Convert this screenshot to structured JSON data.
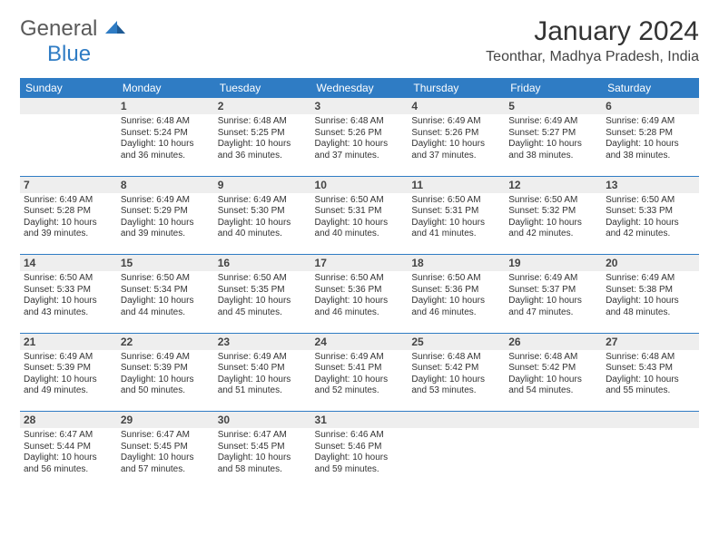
{
  "brand": {
    "part1": "General",
    "part2": "Blue"
  },
  "header": {
    "month_title": "January 2024",
    "location": "Teonthar, Madhya Pradesh, India"
  },
  "colors": {
    "accent": "#2f7cc4",
    "header_text": "#ffffff",
    "daynum_bg": "#eeeeee",
    "body_text": "#333333",
    "page_bg": "#ffffff",
    "logo_gray": "#5a5a5a"
  },
  "day_headers": [
    "Sunday",
    "Monday",
    "Tuesday",
    "Wednesday",
    "Thursday",
    "Friday",
    "Saturday"
  ],
  "weeks": [
    [
      {
        "day": "",
        "sunrise": "",
        "sunset": "",
        "daylight": ""
      },
      {
        "day": "1",
        "sunrise": "Sunrise: 6:48 AM",
        "sunset": "Sunset: 5:24 PM",
        "daylight": "Daylight: 10 hours and 36 minutes."
      },
      {
        "day": "2",
        "sunrise": "Sunrise: 6:48 AM",
        "sunset": "Sunset: 5:25 PM",
        "daylight": "Daylight: 10 hours and 36 minutes."
      },
      {
        "day": "3",
        "sunrise": "Sunrise: 6:48 AM",
        "sunset": "Sunset: 5:26 PM",
        "daylight": "Daylight: 10 hours and 37 minutes."
      },
      {
        "day": "4",
        "sunrise": "Sunrise: 6:49 AM",
        "sunset": "Sunset: 5:26 PM",
        "daylight": "Daylight: 10 hours and 37 minutes."
      },
      {
        "day": "5",
        "sunrise": "Sunrise: 6:49 AM",
        "sunset": "Sunset: 5:27 PM",
        "daylight": "Daylight: 10 hours and 38 minutes."
      },
      {
        "day": "6",
        "sunrise": "Sunrise: 6:49 AM",
        "sunset": "Sunset: 5:28 PM",
        "daylight": "Daylight: 10 hours and 38 minutes."
      }
    ],
    [
      {
        "day": "7",
        "sunrise": "Sunrise: 6:49 AM",
        "sunset": "Sunset: 5:28 PM",
        "daylight": "Daylight: 10 hours and 39 minutes."
      },
      {
        "day": "8",
        "sunrise": "Sunrise: 6:49 AM",
        "sunset": "Sunset: 5:29 PM",
        "daylight": "Daylight: 10 hours and 39 minutes."
      },
      {
        "day": "9",
        "sunrise": "Sunrise: 6:49 AM",
        "sunset": "Sunset: 5:30 PM",
        "daylight": "Daylight: 10 hours and 40 minutes."
      },
      {
        "day": "10",
        "sunrise": "Sunrise: 6:50 AM",
        "sunset": "Sunset: 5:31 PM",
        "daylight": "Daylight: 10 hours and 40 minutes."
      },
      {
        "day": "11",
        "sunrise": "Sunrise: 6:50 AM",
        "sunset": "Sunset: 5:31 PM",
        "daylight": "Daylight: 10 hours and 41 minutes."
      },
      {
        "day": "12",
        "sunrise": "Sunrise: 6:50 AM",
        "sunset": "Sunset: 5:32 PM",
        "daylight": "Daylight: 10 hours and 42 minutes."
      },
      {
        "day": "13",
        "sunrise": "Sunrise: 6:50 AM",
        "sunset": "Sunset: 5:33 PM",
        "daylight": "Daylight: 10 hours and 42 minutes."
      }
    ],
    [
      {
        "day": "14",
        "sunrise": "Sunrise: 6:50 AM",
        "sunset": "Sunset: 5:33 PM",
        "daylight": "Daylight: 10 hours and 43 minutes."
      },
      {
        "day": "15",
        "sunrise": "Sunrise: 6:50 AM",
        "sunset": "Sunset: 5:34 PM",
        "daylight": "Daylight: 10 hours and 44 minutes."
      },
      {
        "day": "16",
        "sunrise": "Sunrise: 6:50 AM",
        "sunset": "Sunset: 5:35 PM",
        "daylight": "Daylight: 10 hours and 45 minutes."
      },
      {
        "day": "17",
        "sunrise": "Sunrise: 6:50 AM",
        "sunset": "Sunset: 5:36 PM",
        "daylight": "Daylight: 10 hours and 46 minutes."
      },
      {
        "day": "18",
        "sunrise": "Sunrise: 6:50 AM",
        "sunset": "Sunset: 5:36 PM",
        "daylight": "Daylight: 10 hours and 46 minutes."
      },
      {
        "day": "19",
        "sunrise": "Sunrise: 6:49 AM",
        "sunset": "Sunset: 5:37 PM",
        "daylight": "Daylight: 10 hours and 47 minutes."
      },
      {
        "day": "20",
        "sunrise": "Sunrise: 6:49 AM",
        "sunset": "Sunset: 5:38 PM",
        "daylight": "Daylight: 10 hours and 48 minutes."
      }
    ],
    [
      {
        "day": "21",
        "sunrise": "Sunrise: 6:49 AM",
        "sunset": "Sunset: 5:39 PM",
        "daylight": "Daylight: 10 hours and 49 minutes."
      },
      {
        "day": "22",
        "sunrise": "Sunrise: 6:49 AM",
        "sunset": "Sunset: 5:39 PM",
        "daylight": "Daylight: 10 hours and 50 minutes."
      },
      {
        "day": "23",
        "sunrise": "Sunrise: 6:49 AM",
        "sunset": "Sunset: 5:40 PM",
        "daylight": "Daylight: 10 hours and 51 minutes."
      },
      {
        "day": "24",
        "sunrise": "Sunrise: 6:49 AM",
        "sunset": "Sunset: 5:41 PM",
        "daylight": "Daylight: 10 hours and 52 minutes."
      },
      {
        "day": "25",
        "sunrise": "Sunrise: 6:48 AM",
        "sunset": "Sunset: 5:42 PM",
        "daylight": "Daylight: 10 hours and 53 minutes."
      },
      {
        "day": "26",
        "sunrise": "Sunrise: 6:48 AM",
        "sunset": "Sunset: 5:42 PM",
        "daylight": "Daylight: 10 hours and 54 minutes."
      },
      {
        "day": "27",
        "sunrise": "Sunrise: 6:48 AM",
        "sunset": "Sunset: 5:43 PM",
        "daylight": "Daylight: 10 hours and 55 minutes."
      }
    ],
    [
      {
        "day": "28",
        "sunrise": "Sunrise: 6:47 AM",
        "sunset": "Sunset: 5:44 PM",
        "daylight": "Daylight: 10 hours and 56 minutes."
      },
      {
        "day": "29",
        "sunrise": "Sunrise: 6:47 AM",
        "sunset": "Sunset: 5:45 PM",
        "daylight": "Daylight: 10 hours and 57 minutes."
      },
      {
        "day": "30",
        "sunrise": "Sunrise: 6:47 AM",
        "sunset": "Sunset: 5:45 PM",
        "daylight": "Daylight: 10 hours and 58 minutes."
      },
      {
        "day": "31",
        "sunrise": "Sunrise: 6:46 AM",
        "sunset": "Sunset: 5:46 PM",
        "daylight": "Daylight: 10 hours and 59 minutes."
      },
      {
        "day": "",
        "sunrise": "",
        "sunset": "",
        "daylight": ""
      },
      {
        "day": "",
        "sunrise": "",
        "sunset": "",
        "daylight": ""
      },
      {
        "day": "",
        "sunrise": "",
        "sunset": "",
        "daylight": ""
      }
    ]
  ]
}
